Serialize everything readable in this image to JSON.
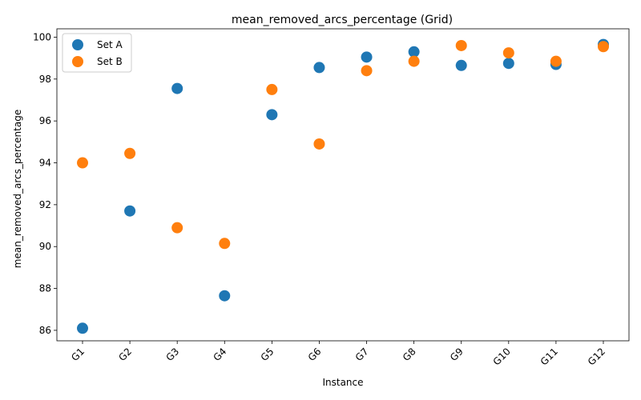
{
  "chart_data": {
    "type": "scatter",
    "title": "mean_removed_arcs_percentage (Grid)",
    "xlabel": "Instance",
    "ylabel": "mean_removed_arcs_percentage",
    "categories": [
      "G1",
      "G2",
      "G3",
      "G4",
      "G5",
      "G6",
      "G7",
      "G8",
      "G9",
      "G10",
      "G11",
      "G12"
    ],
    "ylim": [
      85.5,
      100.4
    ],
    "yticks": [
      "86",
      "88",
      "90",
      "92",
      "94",
      "96",
      "98",
      "100"
    ],
    "grid": false,
    "legend_position": "top-left",
    "series": [
      {
        "name": "Set A",
        "color": "#1f77b4",
        "values": [
          86.1,
          91.7,
          97.55,
          87.65,
          96.3,
          98.55,
          99.05,
          99.3,
          98.65,
          98.75,
          98.7,
          99.65
        ]
      },
      {
        "name": "Set B",
        "color": "#ff7f0e",
        "values": [
          94.0,
          94.45,
          90.9,
          90.15,
          97.5,
          94.9,
          98.4,
          98.85,
          99.6,
          99.25,
          98.85,
          99.55
        ]
      }
    ]
  }
}
